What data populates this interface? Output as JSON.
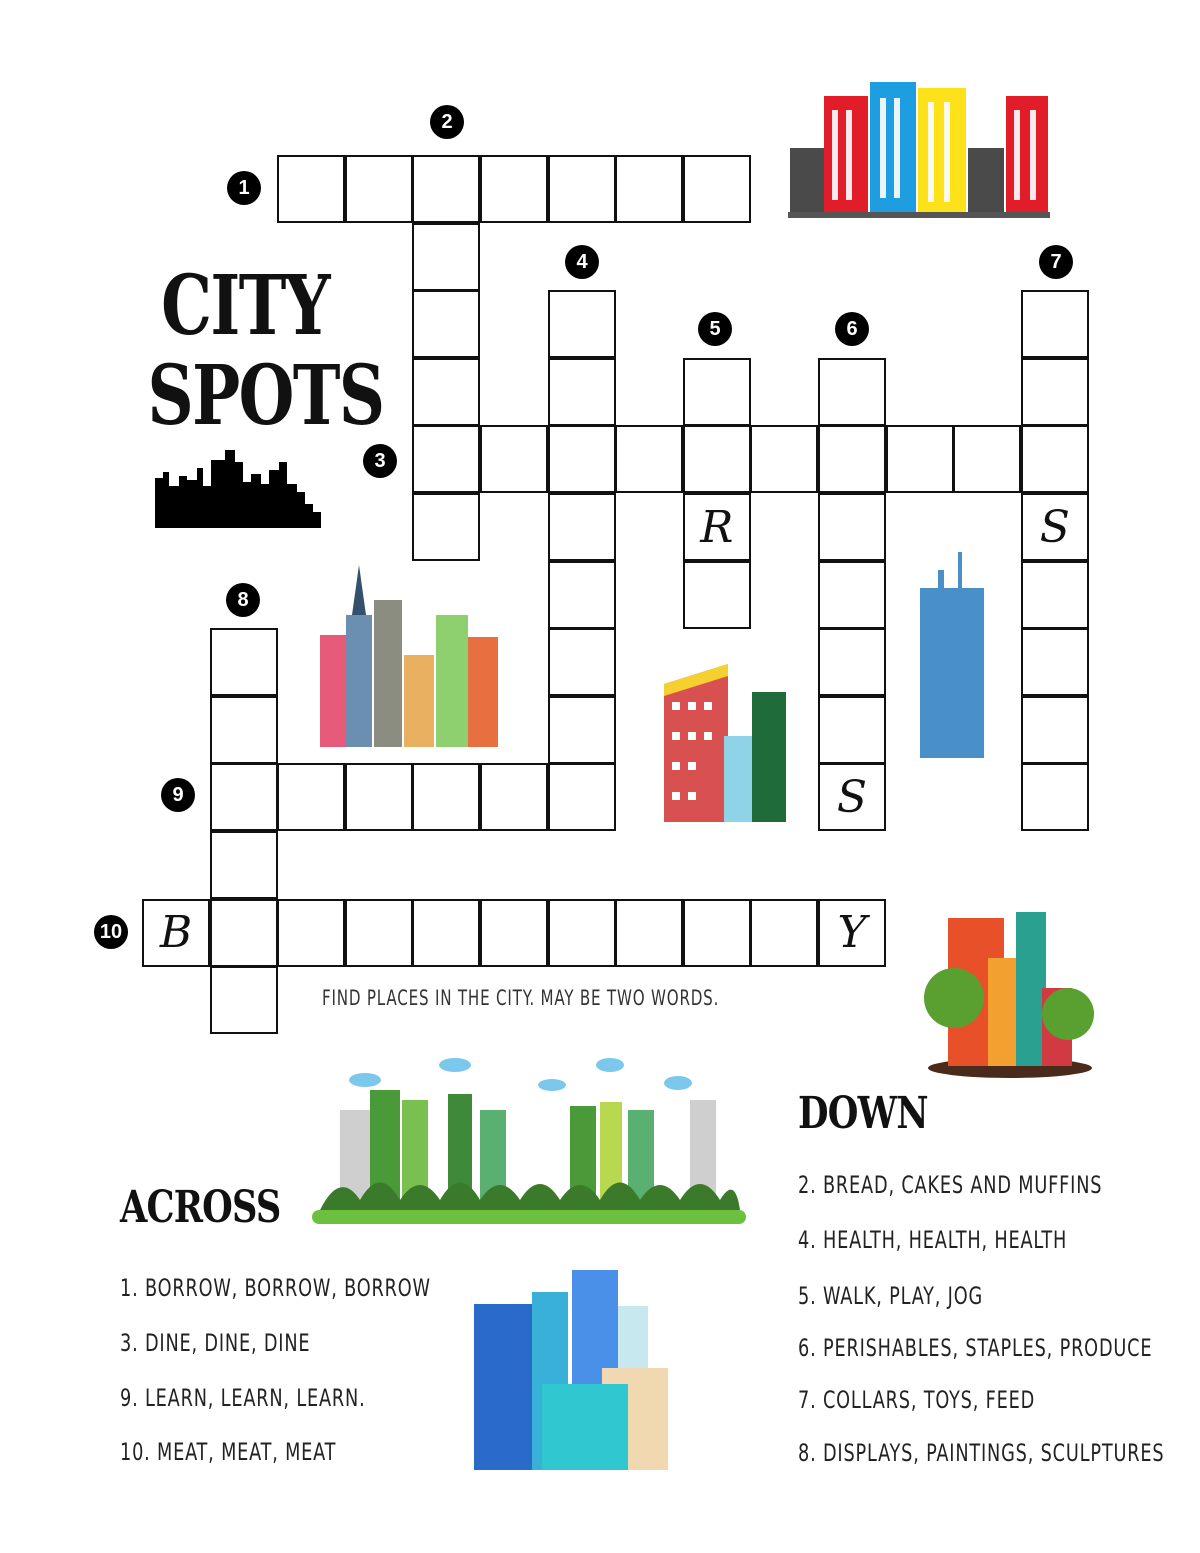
{
  "title": {
    "line1": "CITY",
    "line2": "SPOTS"
  },
  "instructions": "FIND PLACES IN THE CITY. MAY BE TWO WORDS.",
  "clue_numbers": [
    "1",
    "2",
    "3",
    "4",
    "5",
    "6",
    "7",
    "8",
    "9",
    "10"
  ],
  "given_letters": [
    {
      "clue": "5 down",
      "letter": "R"
    },
    {
      "clue": "7 down",
      "letter": "S"
    },
    {
      "clue": "6 down",
      "letter": "S"
    },
    {
      "clue": "10 across",
      "letter": "B"
    },
    {
      "clue": "10 across",
      "letter": "Y"
    }
  ],
  "across": {
    "heading": "ACROSS",
    "clues": [
      "1. BORROW, BORROW, BORROW",
      "3. DINE, DINE, DINE",
      "9. LEARN, LEARN, LEARN.",
      "10. MEAT, MEAT, MEAT"
    ]
  },
  "down": {
    "heading": "DOWN",
    "clues": [
      "2. BREAD, CAKES AND MUFFINS",
      "4. HEALTH, HEALTH, HEALTH",
      "5. WALK, PLAY, JOG",
      "6. PERISHABLES, STAPLES, PRODUCE",
      "7. COLLARS, TOYS, FEED",
      "8. DISPLAYS, PAINTINGS, SCULPTURES"
    ]
  }
}
